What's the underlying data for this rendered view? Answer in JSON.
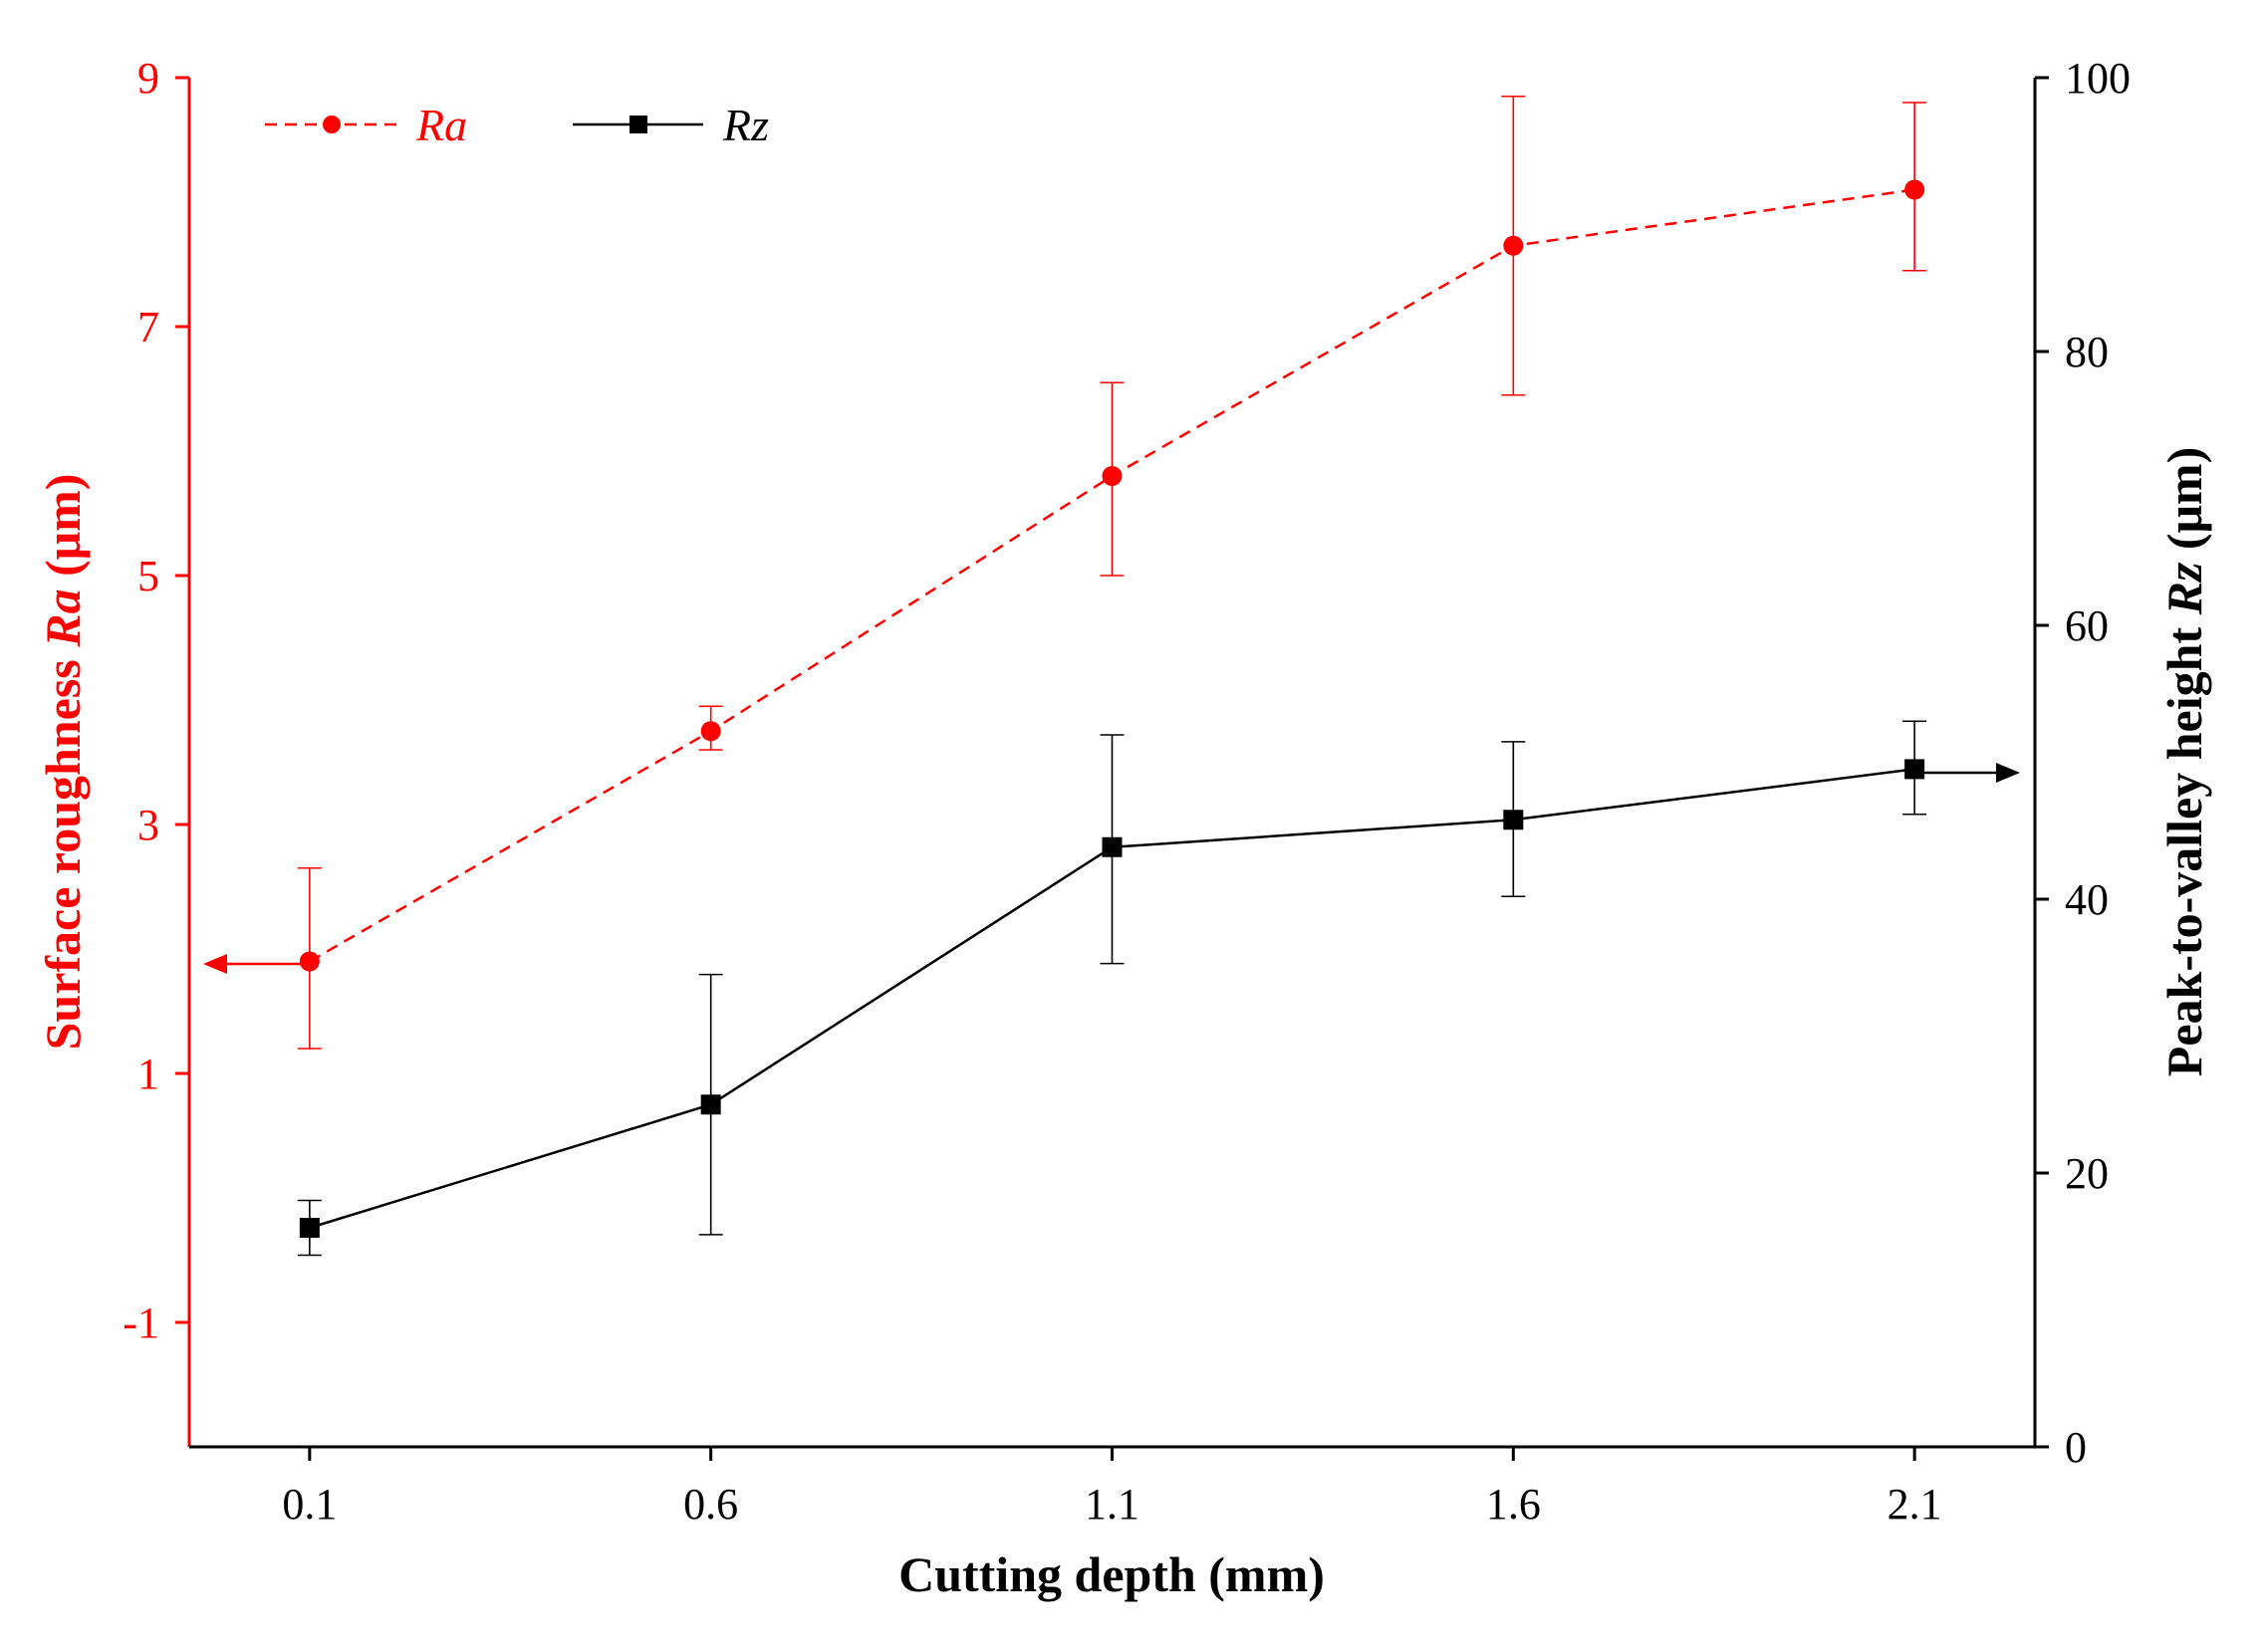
{
  "colors": {
    "ra": "#ff0000",
    "rz": "#000000",
    "axis": "#000000"
  },
  "chart_data": {
    "type": "line",
    "xlabel": "Cutting depth (mm)",
    "x_ticks": [
      "0.1",
      "0.6",
      "1.1",
      "1.6",
      "2.1"
    ],
    "x": [
      0.1,
      0.6,
      1.1,
      1.6,
      2.1
    ],
    "xlim": [
      -0.05,
      2.25
    ],
    "left_axis": {
      "label_prefix": "Surface roughness ",
      "label_var": "Ra",
      "label_suffix": " (μm)",
      "ylim": [
        -2,
        9
      ],
      "ticks": [
        "-1",
        "1",
        "3",
        "5",
        "7",
        "9"
      ],
      "tick_values": [
        -1,
        1,
        3,
        5,
        7,
        9
      ]
    },
    "right_axis": {
      "label_prefix": "Peak-to-valley height ",
      "label_var": "Rz",
      "label_suffix": " (μm)",
      "ylim": [
        0,
        100
      ],
      "ticks": [
        "0",
        "20",
        "40",
        "60",
        "80",
        "100"
      ],
      "tick_values": [
        0,
        20,
        40,
        60,
        80,
        100
      ]
    },
    "series": [
      {
        "name": "Ra",
        "axis": "left",
        "style": "dashed",
        "marker": "circle",
        "values": [
          1.9,
          3.75,
          5.8,
          7.65,
          8.1
        ],
        "err_low": [
          1.2,
          3.6,
          5.0,
          6.45,
          7.45
        ],
        "err_high": [
          2.65,
          3.95,
          6.55,
          8.85,
          8.8
        ]
      },
      {
        "name": "Rz",
        "axis": "right",
        "style": "solid",
        "marker": "square",
        "values": [
          16,
          25,
          43.8,
          45.8,
          49.5
        ],
        "err_low": [
          14,
          15.5,
          35.3,
          40.2,
          46.2
        ],
        "err_high": [
          18,
          34.5,
          52,
          51.5,
          53
        ]
      }
    ],
    "legend": {
      "position": "top-left",
      "entries": [
        "Ra",
        "Rz"
      ]
    },
    "grid": false
  }
}
